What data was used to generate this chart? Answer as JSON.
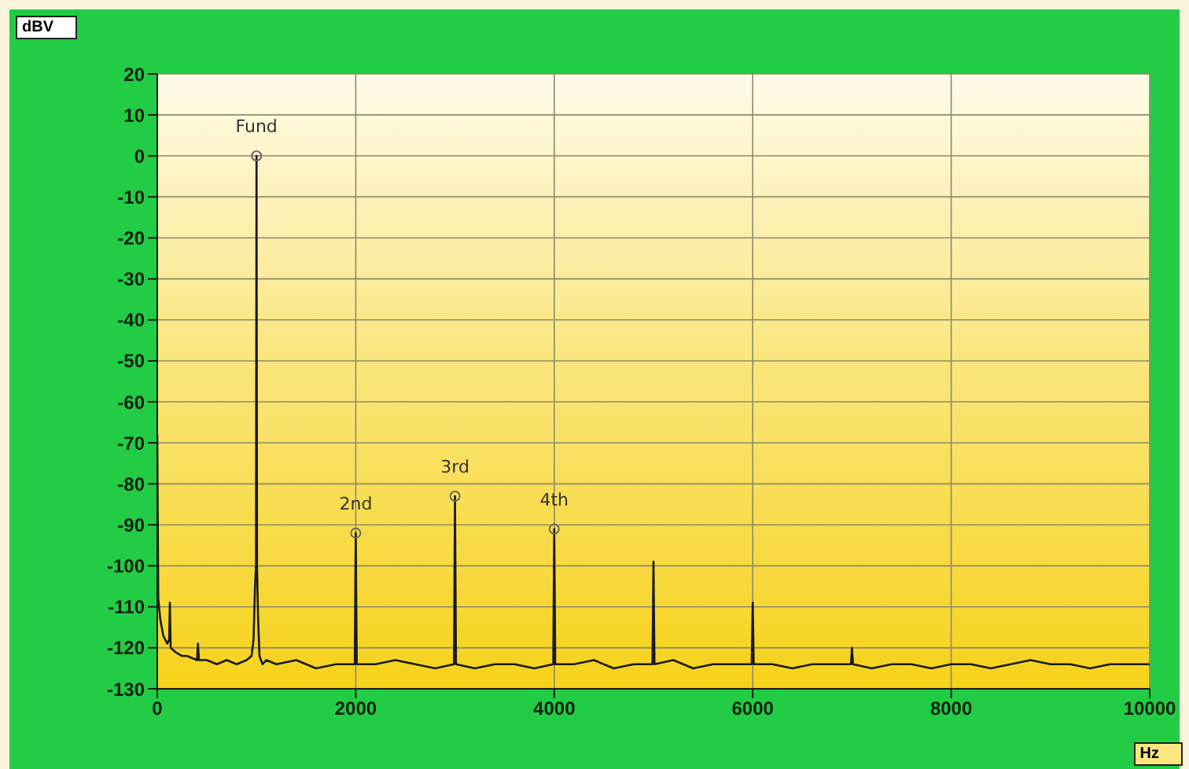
{
  "chart_data": {
    "type": "line",
    "xlabel": "Hz",
    "ylabel": "dBV",
    "xlim": [
      0,
      10000
    ],
    "xticks": [
      0,
      2000,
      4000,
      6000,
      8000,
      10000
    ],
    "ylim": [
      -130,
      20
    ],
    "yticks": [
      20,
      10,
      0,
      -10,
      -20,
      -30,
      -40,
      -50,
      -60,
      -70,
      -80,
      -90,
      -100,
      -110,
      -120,
      -130
    ],
    "grid": true,
    "marker": "none",
    "line_style": "solid",
    "series": [
      {
        "color": "#1a1a1a",
        "x": [
          0,
          10,
          30,
          60,
          100,
          120,
          127,
          135,
          180,
          250,
          300,
          400,
          410,
          420,
          500,
          600,
          700,
          800,
          900,
          950,
          970,
          985,
          995,
          1000,
          1005,
          1015,
          1030,
          1060,
          1100,
          1200,
          1400,
          1600,
          1800,
          1990,
          2000,
          2010,
          2200,
          2400,
          2600,
          2800,
          2990,
          3000,
          3010,
          3200,
          3400,
          3600,
          3800,
          3990,
          4000,
          4010,
          4200,
          4400,
          4600,
          4800,
          4990,
          5000,
          5010,
          5200,
          5400,
          5600,
          5800,
          5990,
          6000,
          6010,
          6200,
          6400,
          6600,
          6800,
          6990,
          7000,
          7010,
          7200,
          7400,
          7600,
          7800,
          8000,
          8200,
          8400,
          8600,
          8800,
          9000,
          9200,
          9400,
          9600,
          9800,
          10000
        ],
        "values": [
          -68,
          -108,
          -113,
          -117,
          -119,
          -118,
          -109,
          -120,
          -121,
          -122,
          -122,
          -123,
          -119,
          -123,
          -123,
          -124,
          -123,
          -124,
          -123,
          -122,
          -118,
          -105,
          -100,
          0,
          -100,
          -112,
          -122,
          -124,
          -123,
          -124,
          -123,
          -125,
          -124,
          -124,
          -92,
          -124,
          -124,
          -123,
          -124,
          -125,
          -124,
          -83,
          -124,
          -125,
          -124,
          -124,
          -125,
          -124,
          -91,
          -124,
          -124,
          -123,
          -125,
          -124,
          -124,
          -99,
          -124,
          -123,
          -125,
          -124,
          -124,
          -124,
          -109,
          -124,
          -124,
          -125,
          -124,
          -124,
          -124,
          -120,
          -124,
          -125,
          -124,
          -124,
          -125,
          -124,
          -124,
          -125,
          -124,
          -123,
          -124,
          -124,
          -125,
          -124,
          -124,
          -124
        ]
      }
    ],
    "annotations": [
      {
        "text": "Fund",
        "x": 1000,
        "y": 0
      },
      {
        "text": "2nd",
        "x": 2000,
        "y": -92
      },
      {
        "text": "3rd",
        "x": 3000,
        "y": -83
      },
      {
        "text": "4th",
        "x": 4000,
        "y": -91
      }
    ]
  }
}
